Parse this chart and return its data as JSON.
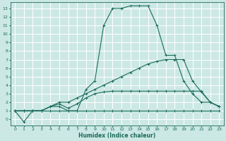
{
  "xlabel": "Humidex (Indice chaleur)",
  "bg_color": "#cce8e4",
  "grid_color": "#ffffff",
  "line_color": "#1a6b5a",
  "xlim": [
    -0.5,
    23.5
  ],
  "ylim": [
    -0.7,
    13.7
  ],
  "xticks": [
    0,
    1,
    2,
    3,
    4,
    5,
    6,
    7,
    8,
    9,
    10,
    11,
    12,
    13,
    14,
    15,
    16,
    17,
    18,
    19,
    20,
    21,
    22,
    23
  ],
  "yticks": [
    0,
    1,
    2,
    3,
    4,
    5,
    6,
    7,
    8,
    9,
    10,
    11,
    12,
    13
  ],
  "lines": [
    {
      "x": [
        0,
        1,
        2,
        3,
        4,
        5,
        6,
        7,
        8,
        9,
        10,
        11,
        12,
        13,
        14,
        15,
        16,
        17,
        18,
        19,
        20,
        21,
        22,
        23
      ],
      "y": [
        1,
        -0.3,
        1,
        1,
        1.5,
        1.5,
        1.0,
        1.0,
        3.5,
        4.5,
        11.0,
        13.0,
        13.0,
        13.3,
        13.3,
        13.3,
        11.0,
        7.5,
        7.5,
        4.5,
        3.0,
        2.0,
        2.0,
        1.5
      ]
    },
    {
      "x": [
        0,
        1,
        2,
        3,
        4,
        5,
        6,
        7,
        8,
        9,
        10,
        11,
        12,
        13,
        14,
        15,
        16,
        17,
        18,
        19,
        20,
        21,
        22,
        23
      ],
      "y": [
        1,
        1,
        1,
        1,
        1.5,
        2.0,
        2.0,
        2.5,
        3.0,
        3.5,
        4.0,
        4.5,
        5.0,
        5.5,
        6.0,
        6.5,
        6.8,
        7.0,
        7.0,
        7.0,
        4.5,
        3.2,
        2.0,
        1.5
      ]
    },
    {
      "x": [
        0,
        1,
        2,
        3,
        4,
        5,
        6,
        7,
        8,
        9,
        10,
        11,
        12,
        13,
        14,
        15,
        16,
        17,
        18,
        19,
        20,
        21,
        22,
        23
      ],
      "y": [
        1,
        1,
        1,
        1,
        1.5,
        1.8,
        1.3,
        1.8,
        2.5,
        3.0,
        3.2,
        3.3,
        3.3,
        3.3,
        3.3,
        3.3,
        3.3,
        3.3,
        3.3,
        3.3,
        3.3,
        3.3,
        2.0,
        1.5
      ]
    },
    {
      "x": [
        0,
        1,
        2,
        3,
        4,
        5,
        6,
        7,
        8,
        9,
        10,
        11,
        12,
        13,
        14,
        15,
        16,
        17,
        18,
        19,
        20,
        21,
        22,
        23
      ],
      "y": [
        1,
        1,
        1,
        1,
        1,
        1,
        1,
        1,
        1,
        1,
        1,
        1,
        1,
        1,
        1,
        1,
        1,
        1,
        1,
        1,
        1,
        1,
        1,
        1
      ]
    }
  ]
}
